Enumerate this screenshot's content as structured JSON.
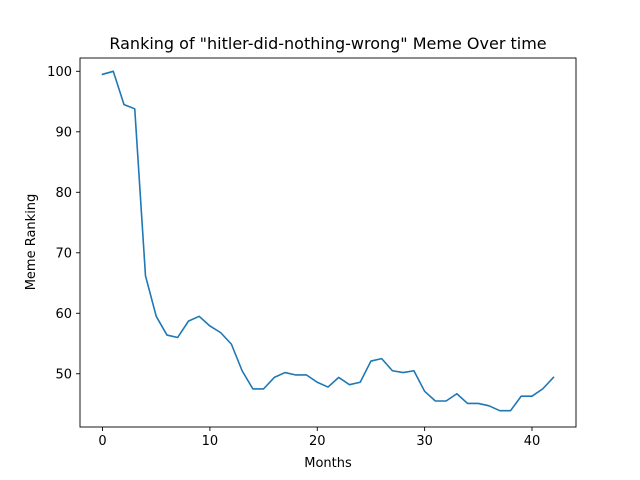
{
  "chart_data": {
    "type": "line",
    "title": "Ranking of \"hitler-did-nothing-wrong\" Meme Over time",
    "xlabel": "Months",
    "ylabel": "Meme Ranking",
    "xlim": [
      -2.1,
      44.1
    ],
    "ylim": [
      41.2,
      102.2
    ],
    "xticks": [
      0,
      10,
      20,
      30,
      40
    ],
    "yticks": [
      50,
      60,
      70,
      80,
      90,
      100
    ],
    "grid": false,
    "legend": "none",
    "series": [
      {
        "color": "#1f77b4",
        "x": [
          0,
          1,
          2,
          3,
          4,
          5,
          6,
          7,
          8,
          9,
          10,
          11,
          12,
          13,
          14,
          15,
          16,
          17,
          18,
          19,
          20,
          21,
          22,
          23,
          24,
          25,
          26,
          27,
          28,
          29,
          30,
          31,
          32,
          33,
          34,
          35,
          36,
          37,
          38,
          39,
          40,
          41,
          42
        ],
        "values": [
          99.5,
          100,
          94.5,
          93.8,
          66.2,
          59.5,
          56.4,
          56,
          58.7,
          59.5,
          57.9,
          56.8,
          54.9,
          50.5,
          47.5,
          47.5,
          49.4,
          50.2,
          49.8,
          49.8,
          48.6,
          47.8,
          49.4,
          48.2,
          48.6,
          52.1,
          52.5,
          50.5,
          50.2,
          50.5,
          47.1,
          45.5,
          45.5,
          46.7,
          45.1,
          45.1,
          44.7,
          43.9,
          43.9,
          46.3,
          46.3,
          47.5,
          49.4
        ]
      }
    ]
  }
}
